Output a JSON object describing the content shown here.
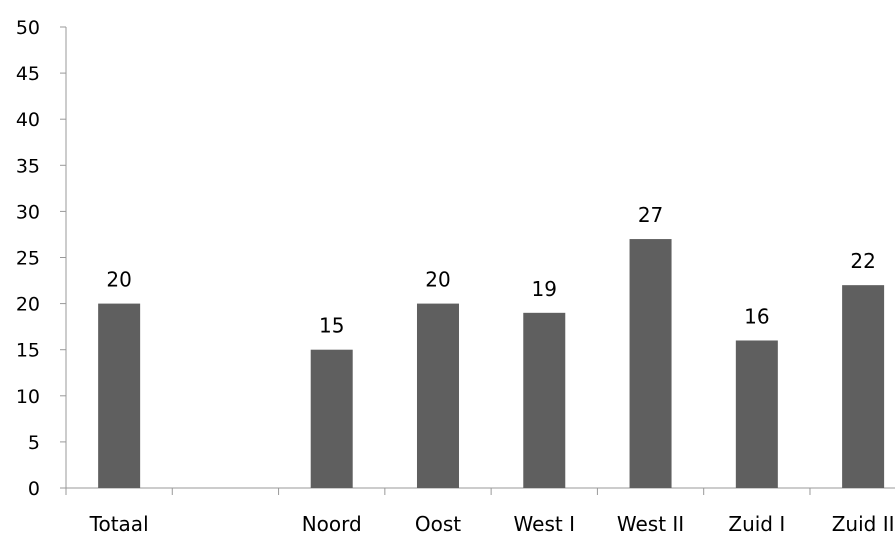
{
  "chart_data": {
    "type": "bar",
    "title": "",
    "xlabel": "",
    "ylabel": "",
    "categories": [
      "Totaal",
      "",
      "Noord",
      "Oost",
      "West I",
      "West II",
      "Zuid I",
      "Zuid II"
    ],
    "values": [
      20,
      null,
      15,
      20,
      19,
      27,
      16,
      22
    ],
    "ylim": [
      0,
      50
    ],
    "yticks": [
      0,
      5,
      10,
      15,
      20,
      25,
      30,
      35,
      40,
      45,
      50
    ],
    "grid": false,
    "legend": "none",
    "bar_color": "#5f5f5f",
    "axis_color": "#999999"
  }
}
